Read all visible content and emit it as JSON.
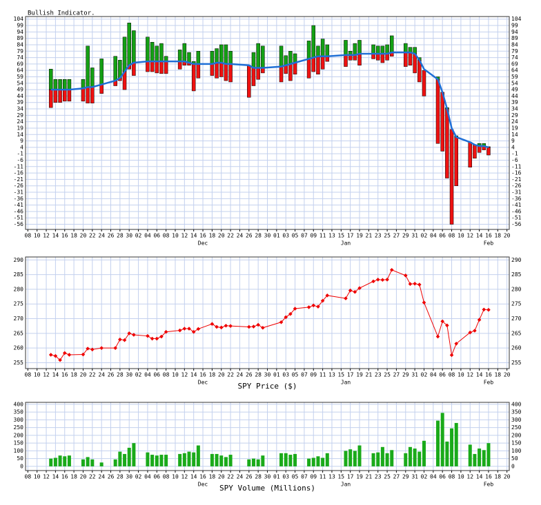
{
  "x_axis": {
    "xlim": [
      -0.5,
      104.5
    ],
    "xticks": [
      {
        "value": 0,
        "label": "08"
      },
      {
        "value": 2,
        "label": "10"
      },
      {
        "value": 4,
        "label": "12"
      },
      {
        "value": 6,
        "label": "14"
      },
      {
        "value": 8,
        "label": "16"
      },
      {
        "value": 10,
        "label": "18"
      },
      {
        "value": 12,
        "label": "20"
      },
      {
        "value": 14,
        "label": "22"
      },
      {
        "value": 16,
        "label": "24"
      },
      {
        "value": 18,
        "label": "26"
      },
      {
        "value": 20,
        "label": "28"
      },
      {
        "value": 22,
        "label": "30"
      },
      {
        "value": 24,
        "label": "02"
      },
      {
        "value": 26,
        "label": "04"
      },
      {
        "value": 28,
        "label": "06"
      },
      {
        "value": 30,
        "label": "08"
      },
      {
        "value": 32,
        "label": "10"
      },
      {
        "value": 34,
        "label": "12"
      },
      {
        "value": 36,
        "label": "14"
      },
      {
        "value": 38,
        "label": "16"
      },
      {
        "value": 40,
        "label": "18"
      },
      {
        "value": 42,
        "label": "20"
      },
      {
        "value": 44,
        "label": "22"
      },
      {
        "value": 46,
        "label": "24"
      },
      {
        "value": 48,
        "label": "26"
      },
      {
        "value": 50,
        "label": "28"
      },
      {
        "value": 52,
        "label": "30"
      },
      {
        "value": 54,
        "label": "01"
      },
      {
        "value": 56,
        "label": "03"
      },
      {
        "value": 58,
        "label": "05"
      },
      {
        "value": 60,
        "label": "07"
      },
      {
        "value": 62,
        "label": "09"
      },
      {
        "value": 64,
        "label": "11"
      },
      {
        "value": 66,
        "label": "13"
      },
      {
        "value": 68,
        "label": "15"
      },
      {
        "value": 70,
        "label": "17"
      },
      {
        "value": 72,
        "label": "19"
      },
      {
        "value": 74,
        "label": "21"
      },
      {
        "value": 76,
        "label": "23"
      },
      {
        "value": 78,
        "label": "25"
      },
      {
        "value": 80,
        "label": "27"
      },
      {
        "value": 82,
        "label": "29"
      },
      {
        "value": 84,
        "label": "31"
      },
      {
        "value": 86,
        "label": "02"
      },
      {
        "value": 88,
        "label": "04"
      },
      {
        "value": 90,
        "label": "06"
      },
      {
        "value": 92,
        "label": "08"
      },
      {
        "value": 94,
        "label": "10"
      },
      {
        "value": 96,
        "label": "12"
      },
      {
        "value": 98,
        "label": "14"
      },
      {
        "value": 100,
        "label": "16"
      },
      {
        "value": 102,
        "label": "18"
      },
      {
        "value": 104,
        "label": "20"
      }
    ],
    "months": [
      {
        "value": 38,
        "label": "Dec"
      },
      {
        "value": 69,
        "label": "Jan"
      },
      {
        "value": 100,
        "label": "Feb"
      }
    ]
  },
  "chart_data": [
    {
      "type": "range_bar",
      "title": "Bullish Indicator.",
      "x": [
        5,
        6,
        7,
        8,
        9,
        12,
        13,
        14,
        16,
        19,
        20,
        21,
        22,
        23,
        26,
        27,
        28,
        29,
        30,
        33,
        34,
        35,
        36,
        37,
        40,
        41,
        42,
        43,
        44,
        48,
        49,
        50,
        51,
        55,
        56,
        57,
        58,
        61,
        62,
        63,
        64,
        65,
        69,
        70,
        71,
        72,
        75,
        76,
        77,
        78,
        79,
        82,
        83,
        84,
        85,
        86,
        89,
        90,
        91,
        92,
        93,
        96,
        97,
        98,
        99,
        100
      ],
      "highs": [
        65,
        57,
        57,
        57,
        57,
        57,
        83,
        66,
        73,
        75,
        72,
        90,
        101,
        95,
        90,
        86,
        83,
        85,
        75,
        80,
        85,
        78,
        71,
        79,
        79,
        81,
        84,
        84,
        79,
        68,
        78,
        85,
        83,
        83,
        75.5,
        79,
        77,
        87,
        99,
        83,
        88.5,
        84,
        87.5,
        79,
        85,
        87.5,
        84,
        83,
        83,
        84,
        91,
        85,
        82,
        82,
        74,
        64,
        59,
        47,
        35,
        18,
        13,
        8,
        6,
        7,
        7,
        4.5
      ],
      "lows": [
        35,
        39,
        39,
        40,
        40,
        40,
        38.5,
        38.5,
        46,
        52,
        56,
        49,
        65,
        60,
        63,
        63,
        62,
        61.5,
        61.5,
        65,
        68,
        68,
        48,
        58,
        60,
        58,
        59,
        56,
        55,
        43,
        52,
        57,
        62,
        55,
        61.5,
        56,
        61,
        58,
        63,
        61,
        65,
        71,
        67,
        72,
        72,
        68,
        73,
        72,
        70,
        72,
        75,
        67,
        68,
        62,
        55,
        44,
        7,
        1,
        -20,
        -56,
        -26,
        -11.5,
        -4.5,
        0,
        2,
        -2
      ],
      "average": [
        49,
        49,
        49,
        49,
        49,
        50,
        51,
        51,
        53,
        56,
        58,
        63,
        68,
        70,
        71,
        71,
        71,
        71,
        71,
        71,
        71,
        70,
        69,
        69,
        69,
        70,
        70,
        69,
        69,
        68,
        66,
        66,
        66,
        67,
        68,
        69,
        70,
        73,
        74,
        75,
        75,
        75,
        76,
        76,
        76,
        77,
        77,
        77,
        77,
        77,
        78,
        78,
        78,
        77,
        72,
        65,
        57,
        47,
        34,
        19,
        12,
        8,
        6,
        5,
        5,
        4
      ],
      "colors": {
        "up": "#14a014",
        "down": "#ee1111",
        "average": "#1f6fd6"
      },
      "ylim": [
        -60,
        106
      ],
      "yticks": [
        104,
        99,
        94,
        89,
        84,
        79,
        74,
        69,
        64,
        59,
        54,
        49,
        44,
        39,
        34,
        29,
        24,
        19,
        14,
        9,
        4,
        -1,
        -6,
        -11,
        -16,
        -21,
        -26,
        -31,
        -36,
        -41,
        -46,
        -51,
        -56
      ],
      "grid": true
    },
    {
      "type": "line",
      "xlabel": "SPY Price ($)",
      "x": [
        5,
        6,
        7,
        8,
        9,
        12,
        13,
        14,
        16,
        19,
        20,
        21,
        22,
        23,
        26,
        27,
        28,
        29,
        30,
        33,
        34,
        35,
        36,
        37,
        40,
        41,
        42,
        43,
        44,
        48,
        49,
        50,
        51,
        55,
        56,
        57,
        58,
        61,
        62,
        63,
        64,
        65,
        69,
        70,
        71,
        72,
        75,
        76,
        77,
        78,
        79,
        82,
        83,
        84,
        85,
        86,
        89,
        90,
        91,
        92,
        93,
        96,
        97,
        98,
        99,
        100
      ],
      "values": [
        257.7,
        257.3,
        255.9,
        258.3,
        257.7,
        257.8,
        259.8,
        259.5,
        260.0,
        260.0,
        262.9,
        262.7,
        265.0,
        264.5,
        264.1,
        263.2,
        263.2,
        263.9,
        265.5,
        266.0,
        266.6,
        266.6,
        265.5,
        266.5,
        268.2,
        267.2,
        267.0,
        267.6,
        267.5,
        267.2,
        267.3,
        267.9,
        266.9,
        268.8,
        270.5,
        271.6,
        273.4,
        273.9,
        274.5,
        274.1,
        276.1,
        277.9,
        276.9,
        279.6,
        279.1,
        280.4,
        282.7,
        283.3,
        283.2,
        283.3,
        286.6,
        284.7,
        281.8,
        281.9,
        281.6,
        275.5,
        263.9,
        269.1,
        267.7,
        257.6,
        261.5,
        265.3,
        265.9,
        269.6,
        273.1,
        273.0
      ],
      "color": "#ee0000",
      "ylim": [
        253,
        291
      ],
      "yticks": [
        290,
        285,
        280,
        275,
        270,
        265,
        260,
        255
      ],
      "grid": true
    },
    {
      "type": "bar",
      "xlabel": "SPY Volume (Millions)",
      "x": [
        5,
        6,
        7,
        8,
        9,
        12,
        13,
        14,
        16,
        19,
        20,
        21,
        22,
        23,
        26,
        27,
        28,
        29,
        30,
        33,
        34,
        35,
        36,
        37,
        40,
        41,
        42,
        43,
        44,
        48,
        49,
        50,
        51,
        55,
        56,
        57,
        58,
        61,
        62,
        63,
        64,
        65,
        69,
        70,
        71,
        72,
        75,
        76,
        77,
        78,
        79,
        82,
        83,
        84,
        85,
        86,
        89,
        90,
        91,
        92,
        93,
        96,
        97,
        98,
        99,
        100
      ],
      "values": [
        50,
        55,
        70,
        65,
        70,
        45,
        60,
        45,
        25,
        45,
        95,
        80,
        120,
        150,
        90,
        75,
        70,
        75,
        75,
        80,
        85,
        95,
        90,
        135,
        80,
        80,
        70,
        60,
        75,
        45,
        50,
        45,
        70,
        85,
        85,
        75,
        80,
        50,
        55,
        65,
        55,
        85,
        100,
        110,
        100,
        135,
        85,
        90,
        125,
        85,
        105,
        85,
        125,
        115,
        95,
        165,
        295,
        345,
        160,
        245,
        280,
        140,
        80,
        115,
        105,
        150
      ],
      "color": "#1aaa1a",
      "ylim": [
        -27,
        413
      ],
      "yticks": [
        400,
        350,
        300,
        250,
        200,
        150,
        100,
        50,
        0
      ],
      "grid": true
    }
  ]
}
